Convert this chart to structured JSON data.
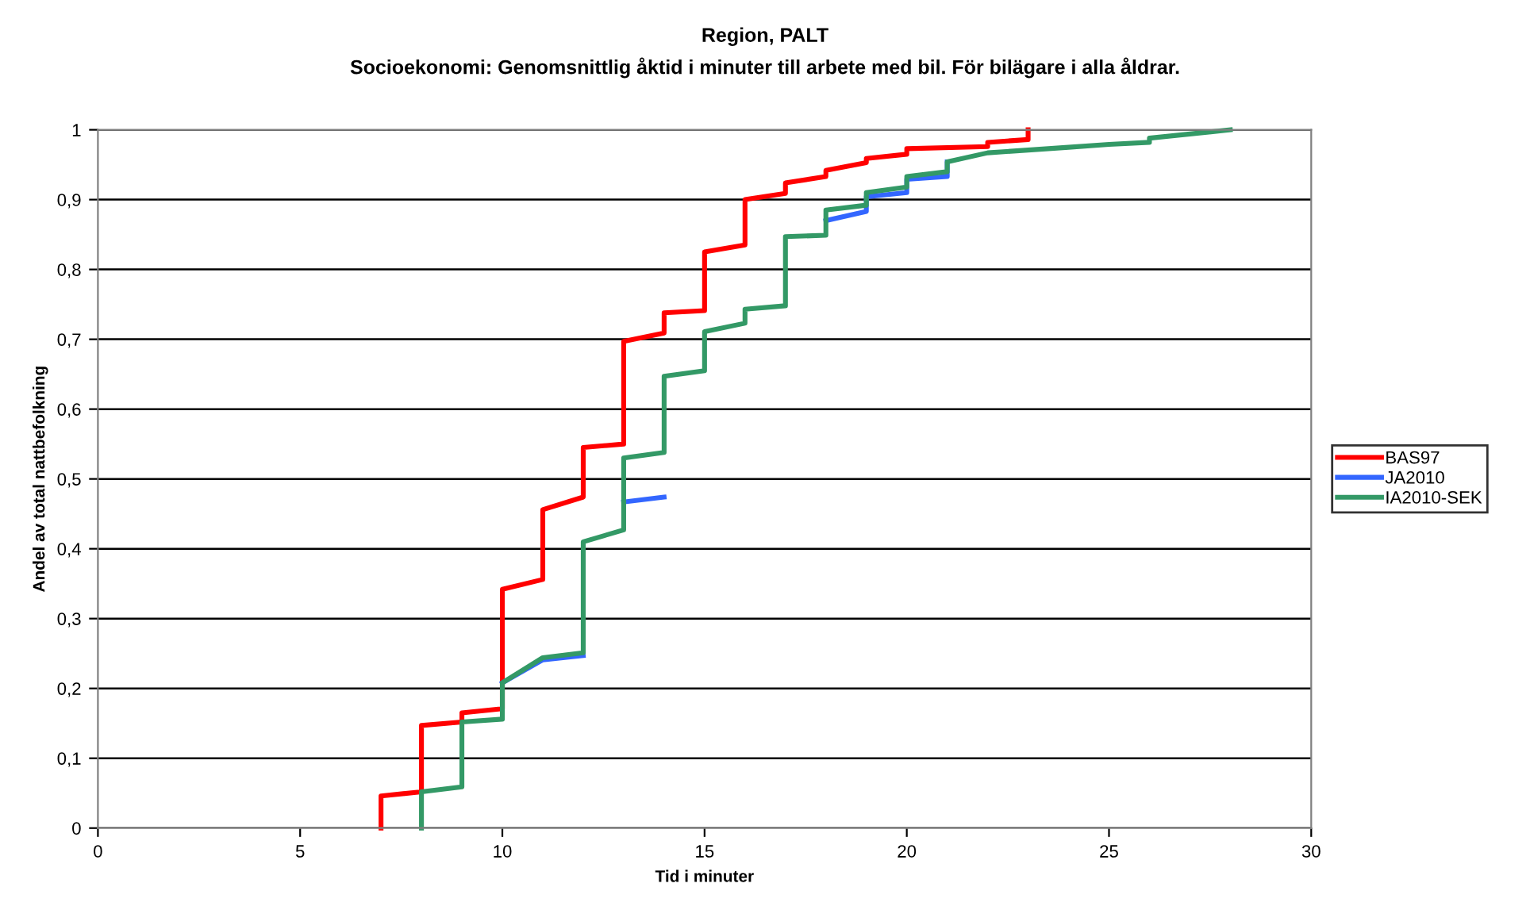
{
  "chart_data": {
    "type": "line",
    "title": "Region, PALT",
    "subtitle": "Socioekonomi: Genomsnittlig åktid i minuter till arbete med bil. För bilägare i alla åldrar.",
    "xlabel": "Tid i minuter",
    "ylabel": "Andel av total nattbefolkning",
    "series": [
      {
        "name": "BAS97",
        "color": "#ff0000",
        "x": [
          7,
          7,
          8,
          8,
          9,
          9,
          10,
          10,
          11,
          11,
          12,
          12,
          13,
          13,
          14,
          14,
          15,
          15,
          16,
          16,
          17,
          17,
          18,
          18,
          19,
          19,
          20,
          20,
          22,
          22,
          23,
          23
        ],
        "values": [
          0,
          0.046,
          0.052,
          0.147,
          0.152,
          0.165,
          0.171,
          0.342,
          0.356,
          0.456,
          0.474,
          0.545,
          0.55,
          0.697,
          0.709,
          0.738,
          0.741,
          0.825,
          0.835,
          0.9,
          0.909,
          0.924,
          0.933,
          0.942,
          0.953,
          0.959,
          0.965,
          0.973,
          0.976,
          0.982,
          0.986,
          1.0
        ]
      },
      {
        "name": "JA2010",
        "color": "#3366ff",
        "x": [
          10,
          11,
          12,
          null,
          13,
          14,
          null,
          18,
          19,
          19,
          20,
          20,
          21,
          21
        ],
        "values": [
          0.208,
          0.241,
          0.247,
          null,
          0.467,
          0.474,
          null,
          0.87,
          0.883,
          0.904,
          0.91,
          0.929,
          0.933,
          0.954
        ]
      },
      {
        "name": "IA2010-SEK",
        "color": "#339966",
        "x": [
          8,
          8,
          9,
          9,
          10,
          10,
          11,
          12,
          12,
          13,
          13,
          14,
          14,
          15,
          15,
          16,
          16,
          17,
          17,
          18,
          18,
          19,
          19,
          20,
          20,
          21,
          21,
          22,
          23,
          24,
          25,
          26,
          26,
          28
        ],
        "values": [
          0,
          0.052,
          0.059,
          0.152,
          0.156,
          0.208,
          0.244,
          0.251,
          0.41,
          0.427,
          0.53,
          0.538,
          0.647,
          0.655,
          0.711,
          0.723,
          0.743,
          0.748,
          0.847,
          0.849,
          0.885,
          0.892,
          0.91,
          0.918,
          0.933,
          0.94,
          0.954,
          0.967,
          0.971,
          0.975,
          0.979,
          0.982,
          0.988,
          1.0
        ]
      }
    ],
    "xlim": [
      0,
      30
    ],
    "xticks": [
      0,
      5,
      10,
      15,
      20,
      25,
      30
    ],
    "ylim": [
      0,
      1
    ],
    "yticks": [
      0,
      {
        "value": 0.1,
        "label": "0,1"
      },
      {
        "value": 0.2,
        "label": "0,2"
      },
      {
        "value": 0.3,
        "label": "0,3"
      },
      {
        "value": 0.4,
        "label": "0,4"
      },
      {
        "value": 0.5,
        "label": "0,5"
      },
      {
        "value": 0.6,
        "label": "0,6"
      },
      {
        "value": 0.7,
        "label": "0,7"
      },
      {
        "value": 0.8,
        "label": "0,8"
      },
      {
        "value": 0.9,
        "label": "0,9"
      },
      1
    ],
    "grid": "y",
    "legend": "right",
    "marker": "none",
    "line_style": "solid"
  }
}
